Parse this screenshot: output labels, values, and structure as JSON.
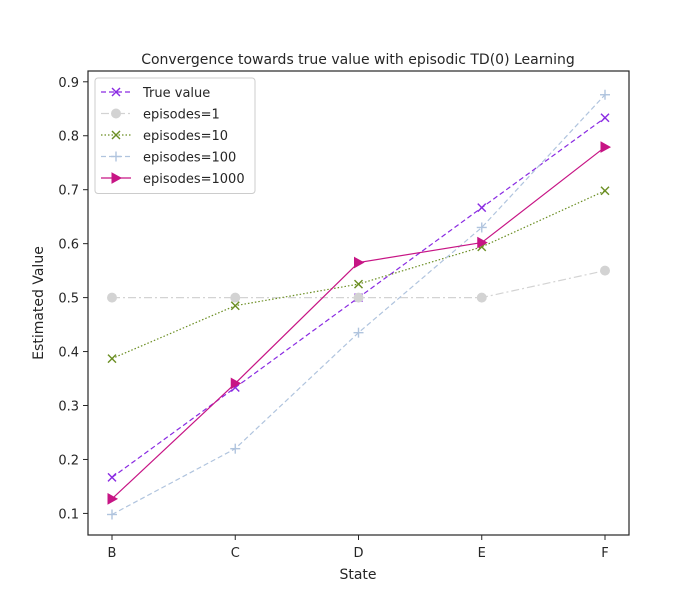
{
  "chart_data": {
    "type": "line",
    "title": "Convergence towards true value with episodic TD(0) Learning",
    "xlabel": "State",
    "ylabel": "Estimated Value",
    "categories": [
      "B",
      "C",
      "D",
      "E",
      "F"
    ],
    "ylim": [
      0.06,
      0.92
    ],
    "yticks": [
      0.1,
      0.2,
      0.3,
      0.4,
      0.5,
      0.6,
      0.7,
      0.8,
      0.9
    ],
    "grid": false,
    "legend_position": "top-left",
    "series": [
      {
        "name": "True value",
        "values": [
          0.1667,
          0.3333,
          0.5,
          0.6667,
          0.8333
        ],
        "color": "#8a2be2",
        "marker": "x",
        "linestyle": "dashed"
      },
      {
        "name": "episodes=1",
        "values": [
          0.5,
          0.5,
          0.5,
          0.5,
          0.55
        ],
        "color": "#d3d3d3",
        "marker": "o",
        "linestyle": "dashdot"
      },
      {
        "name": "episodes=10",
        "values": [
          0.387,
          0.485,
          0.525,
          0.594,
          0.698
        ],
        "color": "#6b8e23",
        "marker": "x",
        "linestyle": "dotted"
      },
      {
        "name": "episodes=100",
        "values": [
          0.098,
          0.22,
          0.435,
          0.63,
          0.876
        ],
        "color": "#b0c4de",
        "marker": "+",
        "linestyle": "dashed"
      },
      {
        "name": "episodes=1000",
        "values": [
          0.127,
          0.341,
          0.565,
          0.602,
          0.779
        ],
        "color": "#c71585",
        "marker": "triangle-right",
        "linestyle": "solid"
      }
    ]
  }
}
